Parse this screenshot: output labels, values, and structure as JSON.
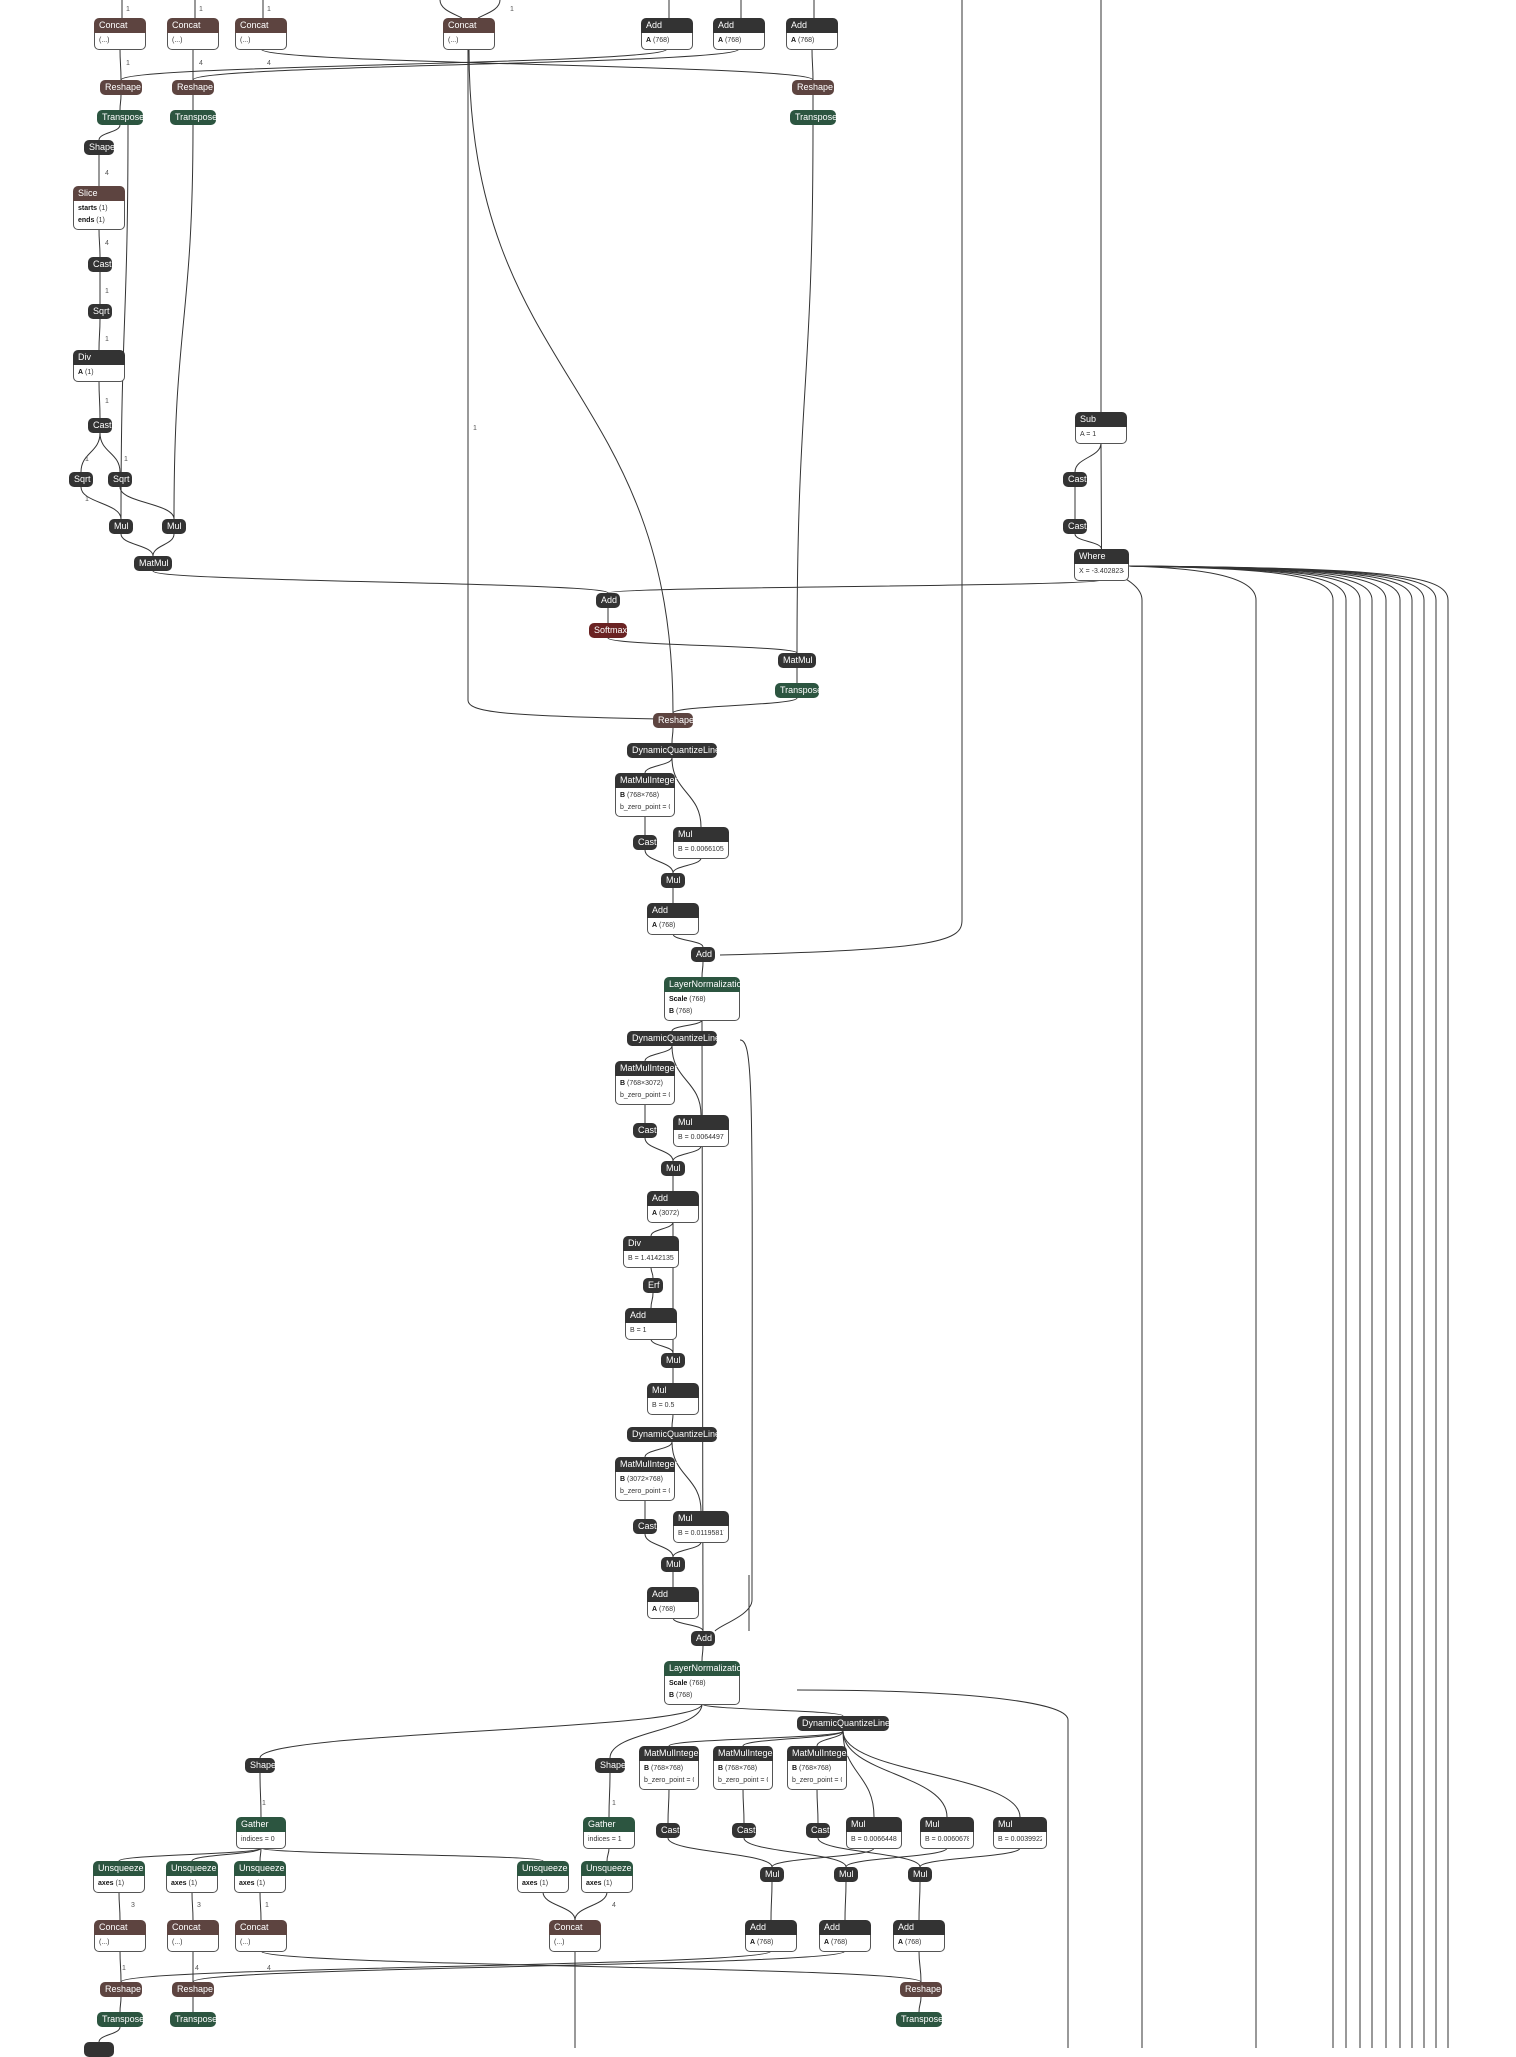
{
  "colors": {
    "layer": "#333333",
    "shape": "#5d4440",
    "transform": "#2c5540",
    "activation": "#6a2323",
    "edge": "#333333"
  },
  "nodes": [
    {
      "id": "n1",
      "op": "Concat",
      "cat": "shape",
      "attrs": [
        [
          "",
          "(...)"
        ]
      ]
    },
    {
      "id": "n2",
      "op": "Concat",
      "cat": "shape",
      "attrs": [
        [
          "",
          "(...)"
        ]
      ]
    },
    {
      "id": "n3",
      "op": "Concat",
      "cat": "shape",
      "attrs": [
        [
          "",
          "(...)"
        ]
      ]
    },
    {
      "id": "n4",
      "op": "Concat",
      "cat": "shape",
      "attrs": [
        [
          "",
          "(...)"
        ]
      ]
    },
    {
      "id": "n5",
      "op": "Add",
      "cat": "layer",
      "attrs": [
        [
          "A",
          "(768)"
        ]
      ]
    },
    {
      "id": "n6",
      "op": "Add",
      "cat": "layer",
      "attrs": [
        [
          "A",
          "(768)"
        ]
      ]
    },
    {
      "id": "n7",
      "op": "Add",
      "cat": "layer",
      "attrs": [
        [
          "A",
          "(768)"
        ]
      ]
    },
    {
      "id": "n8",
      "op": "Reshape",
      "cat": "shape",
      "attrs": []
    },
    {
      "id": "n9",
      "op": "Reshape",
      "cat": "shape",
      "attrs": []
    },
    {
      "id": "n10",
      "op": "Reshape",
      "cat": "shape",
      "attrs": []
    },
    {
      "id": "n11",
      "op": "Transpose",
      "cat": "transform",
      "attrs": []
    },
    {
      "id": "n12",
      "op": "Transpose",
      "cat": "transform",
      "attrs": []
    },
    {
      "id": "n13",
      "op": "Transpose",
      "cat": "transform",
      "attrs": []
    },
    {
      "id": "n14",
      "op": "Shape",
      "cat": "layer",
      "attrs": []
    },
    {
      "id": "n15",
      "op": "Slice",
      "cat": "shape",
      "attrs": [
        [
          "starts",
          "(1)"
        ],
        [
          "ends",
          "(1)"
        ]
      ]
    },
    {
      "id": "n16",
      "op": "Cast",
      "cat": "layer",
      "attrs": []
    },
    {
      "id": "n17",
      "op": "Sqrt",
      "cat": "layer",
      "attrs": []
    },
    {
      "id": "n18",
      "op": "Div",
      "cat": "layer",
      "attrs": [
        [
          "A",
          "(1)"
        ]
      ]
    },
    {
      "id": "n19",
      "op": "Cast",
      "cat": "layer",
      "attrs": []
    },
    {
      "id": "n20",
      "op": "Sqrt",
      "cat": "layer",
      "attrs": []
    },
    {
      "id": "n21",
      "op": "Sqrt",
      "cat": "layer",
      "attrs": []
    },
    {
      "id": "n22",
      "op": "Mul",
      "cat": "layer",
      "attrs": []
    },
    {
      "id": "n23",
      "op": "Mul",
      "cat": "layer",
      "attrs": []
    },
    {
      "id": "n24",
      "op": "MatMul",
      "cat": "layer",
      "attrs": []
    },
    {
      "id": "n25",
      "op": "Sub",
      "cat": "layer",
      "attrs": [
        [
          "",
          "A = 1"
        ]
      ]
    },
    {
      "id": "n26",
      "op": "Cast",
      "cat": "layer",
      "attrs": []
    },
    {
      "id": "n27",
      "op": "Cast",
      "cat": "layer",
      "attrs": []
    },
    {
      "id": "n28",
      "op": "Where",
      "cat": "layer",
      "attrs": [
        [
          "",
          "X = -3.4028234..."
        ]
      ]
    },
    {
      "id": "n29",
      "op": "Add",
      "cat": "layer",
      "attrs": []
    },
    {
      "id": "n30",
      "op": "Softmax",
      "cat": "activation",
      "attrs": []
    },
    {
      "id": "n31",
      "op": "MatMul",
      "cat": "layer",
      "attrs": []
    },
    {
      "id": "n32",
      "op": "Transpose",
      "cat": "transform",
      "attrs": []
    },
    {
      "id": "n33",
      "op": "Reshape",
      "cat": "shape",
      "attrs": []
    },
    {
      "id": "n34",
      "op": "DynamicQuantizeLinear",
      "cat": "layer",
      "attrs": []
    },
    {
      "id": "n35",
      "op": "MatMulInteger",
      "cat": "layer",
      "attrs": [
        [
          "B",
          "(768×768)"
        ],
        [
          "",
          "b_zero_point = 0"
        ]
      ]
    },
    {
      "id": "n36",
      "op": "Mul",
      "cat": "layer",
      "attrs": [
        [
          "",
          "B = 0.00661052..."
        ]
      ]
    },
    {
      "id": "n37",
      "op": "Cast",
      "cat": "layer",
      "attrs": []
    },
    {
      "id": "n38",
      "op": "Mul",
      "cat": "layer",
      "attrs": []
    },
    {
      "id": "n39",
      "op": "Add",
      "cat": "layer",
      "attrs": [
        [
          "A",
          "(768)"
        ]
      ]
    },
    {
      "id": "n40",
      "op": "Add",
      "cat": "layer",
      "attrs": []
    },
    {
      "id": "n41",
      "op": "LayerNormalization",
      "cat": "transform",
      "attrs": [
        [
          "Scale",
          "(768)"
        ],
        [
          "B",
          "(768)"
        ]
      ]
    },
    {
      "id": "n42",
      "op": "DynamicQuantizeLinear",
      "cat": "layer",
      "attrs": []
    },
    {
      "id": "n43",
      "op": "MatMulInteger",
      "cat": "layer",
      "attrs": [
        [
          "B",
          "(768×3072)"
        ],
        [
          "",
          "b_zero_point = 0"
        ]
      ]
    },
    {
      "id": "n44",
      "op": "Mul",
      "cat": "layer",
      "attrs": [
        [
          "",
          "B = 0.00644975..."
        ]
      ]
    },
    {
      "id": "n45",
      "op": "Cast",
      "cat": "layer",
      "attrs": []
    },
    {
      "id": "n46",
      "op": "Mul",
      "cat": "layer",
      "attrs": []
    },
    {
      "id": "n47",
      "op": "Add",
      "cat": "layer",
      "attrs": [
        [
          "A",
          "(3072)"
        ]
      ]
    },
    {
      "id": "n48",
      "op": "Div",
      "cat": "layer",
      "attrs": [
        [
          "",
          "B = 1.41421353..."
        ]
      ]
    },
    {
      "id": "n49",
      "op": "Erf",
      "cat": "layer",
      "attrs": []
    },
    {
      "id": "n50",
      "op": "Add",
      "cat": "layer",
      "attrs": [
        [
          "",
          "B = 1"
        ]
      ]
    },
    {
      "id": "n51",
      "op": "Mul",
      "cat": "layer",
      "attrs": []
    },
    {
      "id": "n52",
      "op": "Mul",
      "cat": "layer",
      "attrs": [
        [
          "",
          "B = 0.5"
        ]
      ]
    },
    {
      "id": "n53",
      "op": "DynamicQuantizeLinear",
      "cat": "layer",
      "attrs": []
    },
    {
      "id": "n54",
      "op": "MatMulInteger",
      "cat": "layer",
      "attrs": [
        [
          "B",
          "(3072×768)"
        ],
        [
          "",
          "b_zero_point = 0"
        ]
      ]
    },
    {
      "id": "n55",
      "op": "Mul",
      "cat": "layer",
      "attrs": [
        [
          "",
          "B = 0.01195817..."
        ]
      ]
    },
    {
      "id": "n56",
      "op": "Cast",
      "cat": "layer",
      "attrs": []
    },
    {
      "id": "n57",
      "op": "Mul",
      "cat": "layer",
      "attrs": []
    },
    {
      "id": "n58",
      "op": "Add",
      "cat": "layer",
      "attrs": [
        [
          "A",
          "(768)"
        ]
      ]
    },
    {
      "id": "n59",
      "op": "Add",
      "cat": "layer",
      "attrs": []
    },
    {
      "id": "n60",
      "op": "LayerNormalization",
      "cat": "transform",
      "attrs": [
        [
          "Scale",
          "(768)"
        ],
        [
          "B",
          "(768)"
        ]
      ]
    },
    {
      "id": "n61",
      "op": "DynamicQuantizeLinear",
      "cat": "layer",
      "attrs": []
    },
    {
      "id": "n62",
      "op": "Shape",
      "cat": "layer",
      "attrs": []
    },
    {
      "id": "n63",
      "op": "Shape",
      "cat": "layer",
      "attrs": []
    },
    {
      "id": "n64",
      "op": "MatMulInteger",
      "cat": "layer",
      "attrs": [
        [
          "B",
          "(768×768)"
        ],
        [
          "",
          "b_zero_point = 0"
        ]
      ]
    },
    {
      "id": "n65",
      "op": "MatMulInteger",
      "cat": "layer",
      "attrs": [
        [
          "B",
          "(768×768)"
        ],
        [
          "",
          "b_zero_point = 0"
        ]
      ]
    },
    {
      "id": "n66",
      "op": "MatMulInteger",
      "cat": "layer",
      "attrs": [
        [
          "B",
          "(768×768)"
        ],
        [
          "",
          "b_zero_point = 0"
        ]
      ]
    },
    {
      "id": "n67",
      "op": "Gather",
      "cat": "transform",
      "attrs": [
        [
          "",
          "indices = 0"
        ]
      ]
    },
    {
      "id": "n68",
      "op": "Gather",
      "cat": "transform",
      "attrs": [
        [
          "",
          "indices = 1"
        ]
      ]
    },
    {
      "id": "n69",
      "op": "Cast",
      "cat": "layer",
      "attrs": []
    },
    {
      "id": "n70",
      "op": "Cast",
      "cat": "layer",
      "attrs": []
    },
    {
      "id": "n71",
      "op": "Cast",
      "cat": "layer",
      "attrs": []
    },
    {
      "id": "n72",
      "op": "Mul",
      "cat": "layer",
      "attrs": [
        [
          "",
          "B = 0.00664489..."
        ]
      ]
    },
    {
      "id": "n73",
      "op": "Mul",
      "cat": "layer",
      "attrs": [
        [
          "",
          "B = 0.00606788..."
        ]
      ]
    },
    {
      "id": "n74",
      "op": "Mul",
      "cat": "layer",
      "attrs": [
        [
          "",
          "B = 0.00399223..."
        ]
      ]
    },
    {
      "id": "n75",
      "op": "Unsqueeze",
      "cat": "transform",
      "attrs": [
        [
          "axes",
          "(1)"
        ]
      ]
    },
    {
      "id": "n76",
      "op": "Unsqueeze",
      "cat": "transform",
      "attrs": [
        [
          "axes",
          "(1)"
        ]
      ]
    },
    {
      "id": "n77",
      "op": "Unsqueeze",
      "cat": "transform",
      "attrs": [
        [
          "axes",
          "(1)"
        ]
      ]
    },
    {
      "id": "n78",
      "op": "Unsqueeze",
      "cat": "transform",
      "attrs": [
        [
          "axes",
          "(1)"
        ]
      ]
    },
    {
      "id": "n79",
      "op": "Unsqueeze",
      "cat": "transform",
      "attrs": [
        [
          "axes",
          "(1)"
        ]
      ]
    },
    {
      "id": "n80",
      "op": "Mul",
      "cat": "layer",
      "attrs": []
    },
    {
      "id": "n81",
      "op": "Mul",
      "cat": "layer",
      "attrs": []
    },
    {
      "id": "n82",
      "op": "Mul",
      "cat": "layer",
      "attrs": []
    },
    {
      "id": "n83",
      "op": "Concat",
      "cat": "shape",
      "attrs": [
        [
          "",
          "(...)"
        ]
      ]
    },
    {
      "id": "n84",
      "op": "Concat",
      "cat": "shape",
      "attrs": [
        [
          "",
          "(...)"
        ]
      ]
    },
    {
      "id": "n85",
      "op": "Concat",
      "cat": "shape",
      "attrs": [
        [
          "",
          "(...)"
        ]
      ]
    },
    {
      "id": "n86",
      "op": "Concat",
      "cat": "shape",
      "attrs": [
        [
          "",
          "(...)"
        ]
      ]
    },
    {
      "id": "n87",
      "op": "Add",
      "cat": "layer",
      "attrs": [
        [
          "A",
          "(768)"
        ]
      ]
    },
    {
      "id": "n88",
      "op": "Add",
      "cat": "layer",
      "attrs": [
        [
          "A",
          "(768)"
        ]
      ]
    },
    {
      "id": "n89",
      "op": "Add",
      "cat": "layer",
      "attrs": [
        [
          "A",
          "(768)"
        ]
      ]
    },
    {
      "id": "n90",
      "op": "Reshape",
      "cat": "shape",
      "attrs": []
    },
    {
      "id": "n91",
      "op": "Reshape",
      "cat": "shape",
      "attrs": []
    },
    {
      "id": "n92",
      "op": "Reshape",
      "cat": "shape",
      "attrs": []
    },
    {
      "id": "n93",
      "op": "Transpose",
      "cat": "transform",
      "attrs": []
    },
    {
      "id": "n94",
      "op": "Transpose",
      "cat": "transform",
      "attrs": []
    },
    {
      "id": "n95",
      "op": "Transpose",
      "cat": "transform",
      "attrs": []
    },
    {
      "id": "n96",
      "op": "",
      "cat": "layer",
      "attrs": []
    }
  ],
  "edge_labels": [
    "1",
    "1",
    "1",
    "1",
    "1",
    "4",
    "4",
    "4",
    "4",
    "1",
    "1",
    "1",
    "1",
    "1",
    "1",
    "1",
    "1",
    "1",
    "3",
    "3",
    "1",
    "1",
    "4",
    "4",
    "4"
  ]
}
